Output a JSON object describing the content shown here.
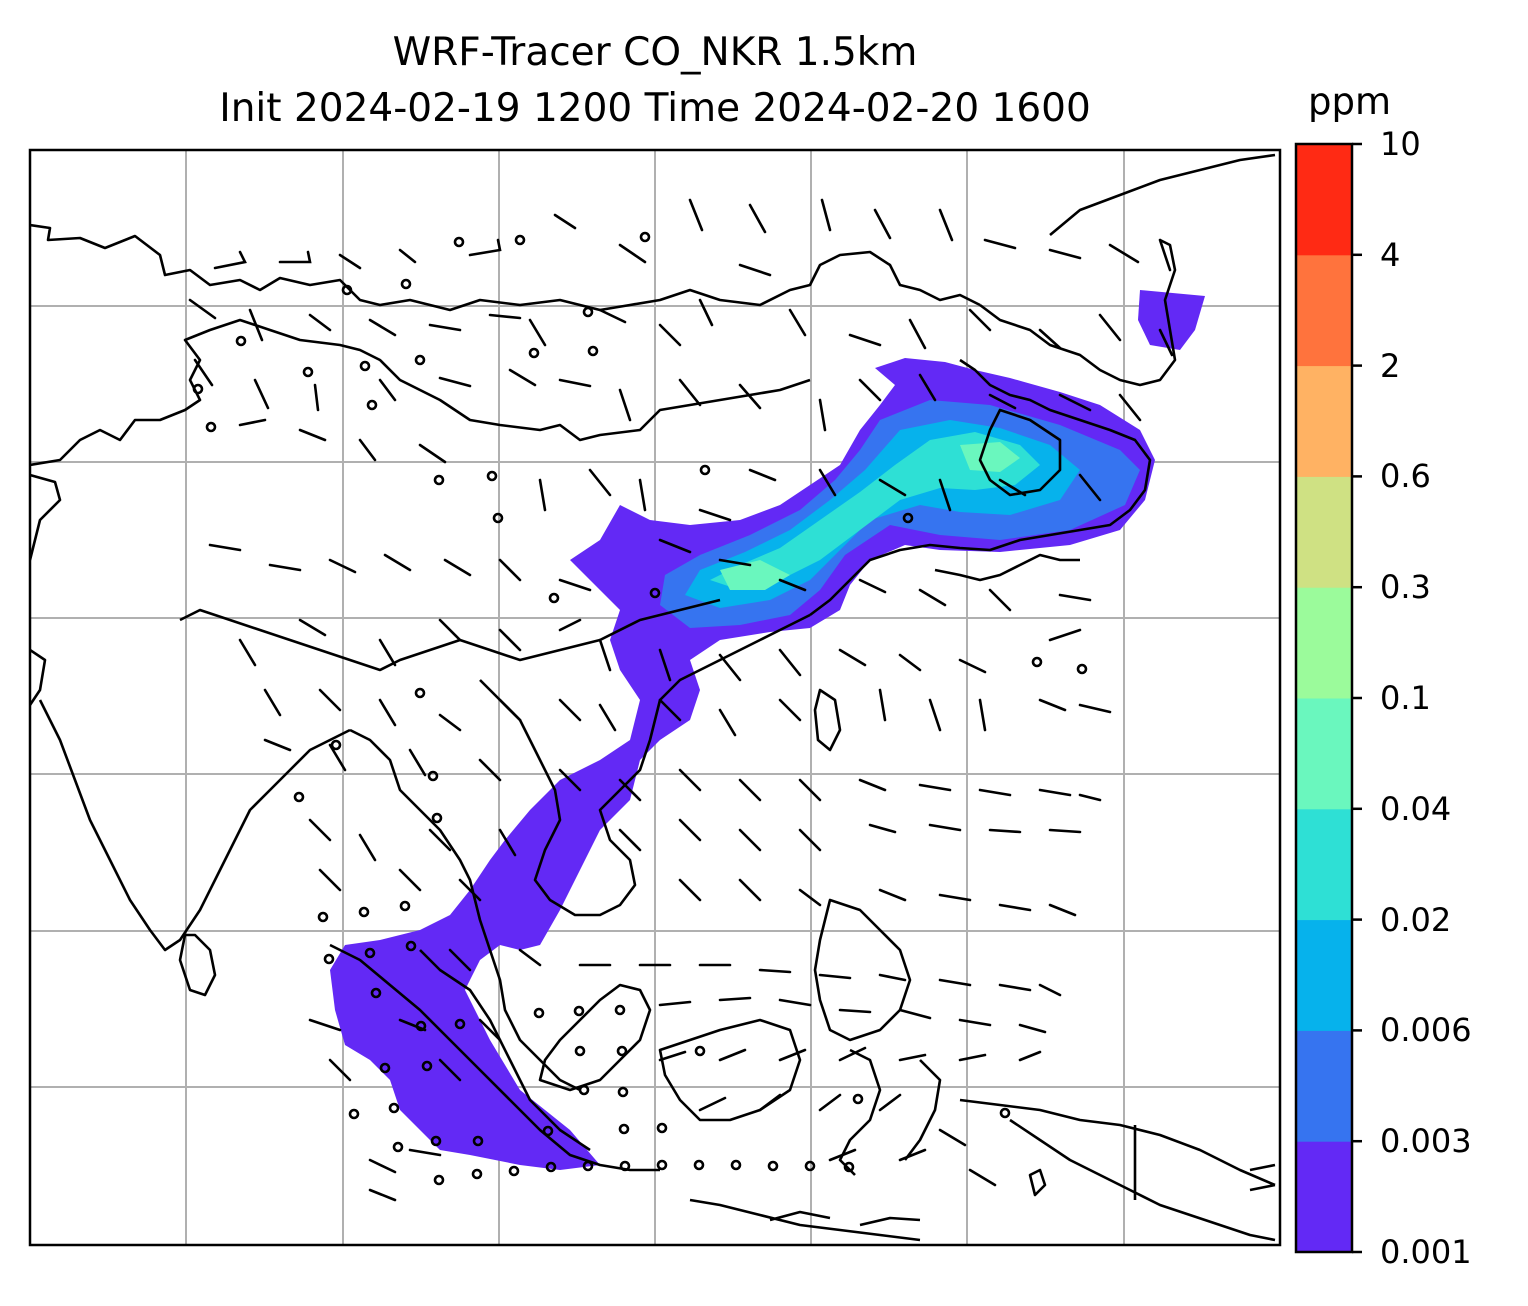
{
  "title_line1": "WRF-Tracer CO_NKR 1.5km",
  "title_line2": "Init 2024-02-19 1200 Time 2024-02-20 1600",
  "colorbar": {
    "unit": "ppm",
    "ticks": [
      "0.001",
      "0.003",
      "0.006",
      "0.02",
      "0.04",
      "0.1",
      "0.3",
      "0.6",
      "2",
      "4",
      "10"
    ],
    "colors": [
      "#6329f5",
      "#3674f0",
      "#06b2ec",
      "#2ee0d5",
      "#6af7be",
      "#9bfb9b",
      "#cfe183",
      "#ffb263",
      "#ff733d",
      "#ff2a14"
    ]
  },
  "map": {
    "gridline_color": "#b0b0b0",
    "coastline_color": "#000000",
    "plume_color_low": "#6329f5"
  }
}
